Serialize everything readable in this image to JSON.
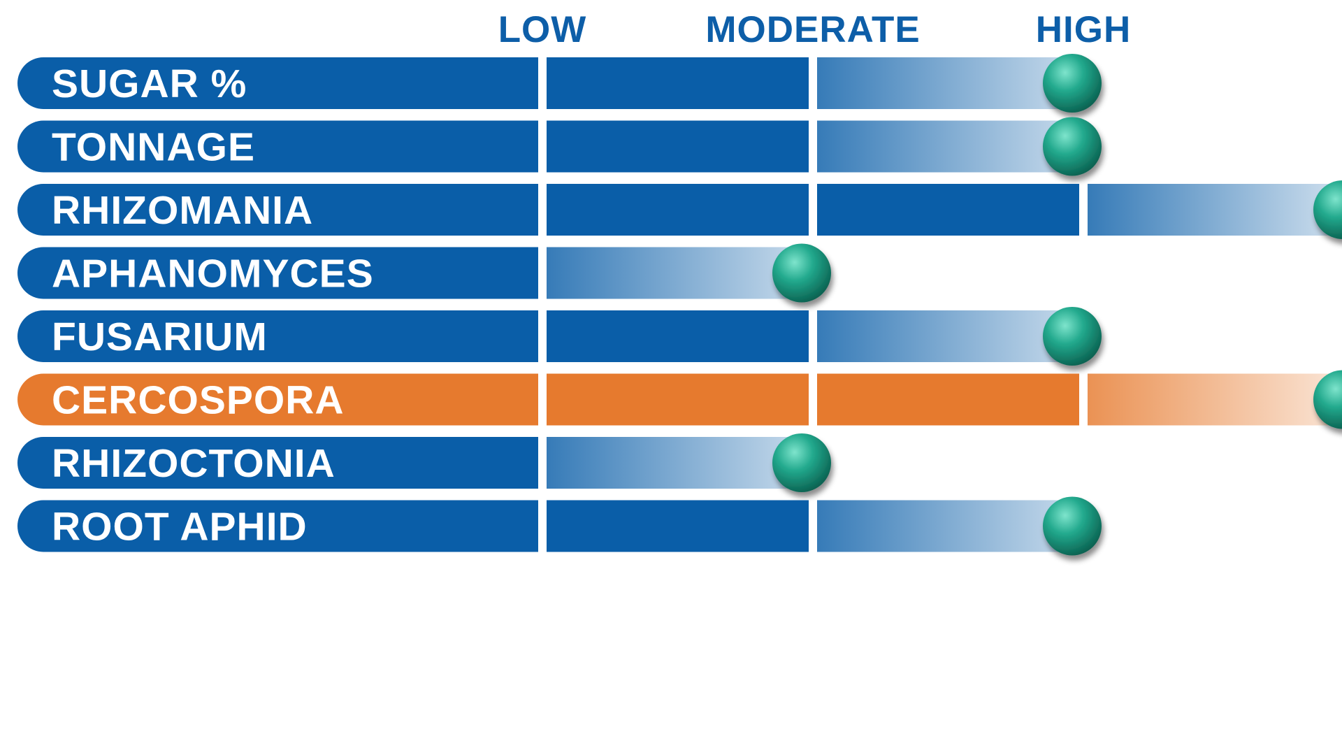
{
  "chart_data": {
    "type": "bar",
    "orientation": "horizontal",
    "scale_levels": [
      "LOW",
      "MODERATE",
      "HIGH"
    ],
    "xlim": [
      0,
      3
    ],
    "categories": [
      "SUGAR %",
      "TONNAGE",
      "RHIZOMANIA",
      "APHANOMYCES",
      "FUSARIUM",
      "CERCOSPORA",
      "RHIZOCTONIA",
      "ROOT APHID"
    ],
    "values": [
      2,
      2,
      3,
      1,
      2,
      3,
      1,
      2
    ],
    "highlighted": [
      "CERCOSPORA"
    ],
    "legend": "none",
    "grid": false
  },
  "colors": {
    "header_text": "#0d5ea8",
    "bar_primary": "#0a5ea8",
    "bar_highlight": "#e67a2e",
    "marker": "#20a88c",
    "background": "#ffffff"
  },
  "icons": {
    "marker": "teal-ball-icon"
  }
}
